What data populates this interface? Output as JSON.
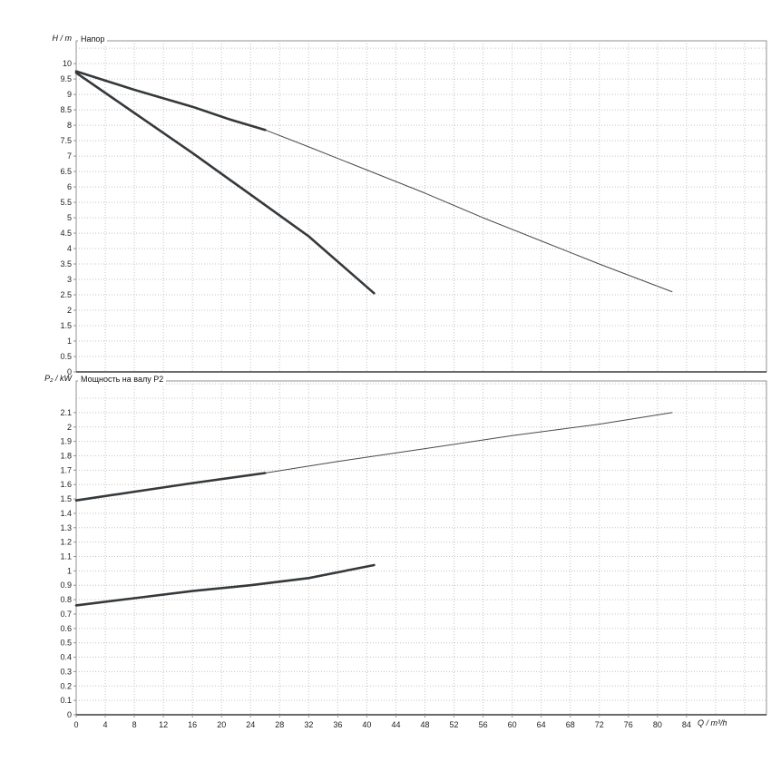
{
  "window": {
    "background": "#ffffff"
  },
  "colors": {
    "grid": "#c4c4c4",
    "frame": "#909090",
    "axis": "#3a3a3a",
    "curve_bold": "#35393c",
    "curve_thin": "#4a4a4a",
    "text": "#111111"
  },
  "xaxis": {
    "label": "Q / m³/h",
    "min": 0,
    "max": 95,
    "tick_step": 4,
    "tick_max": 84
  },
  "chart_data": [
    {
      "type": "line",
      "title": "Напор",
      "ylabel": "H / m",
      "ylim": [
        0,
        10.74
      ],
      "ytick_step": 0.5,
      "ytick_max": 10,
      "grid": "dotted",
      "legend": "none",
      "series": [
        {
          "name": "head-max-speed-curve",
          "weight": "thin",
          "points": [
            [
              0,
              9.75
            ],
            [
              8,
              9.15
            ],
            [
              16,
              8.6
            ],
            [
              21,
              8.2
            ],
            [
              26,
              7.85
            ],
            [
              32,
              7.3
            ],
            [
              40,
              6.55
            ],
            [
              48,
              5.8
            ],
            [
              56,
              5.0
            ],
            [
              64,
              4.25
            ],
            [
              72,
              3.5
            ],
            [
              82,
              2.6
            ]
          ]
        },
        {
          "name": "head-duty-segment",
          "weight": "bold",
          "points": [
            [
              0,
              9.75
            ],
            [
              8,
              9.15
            ],
            [
              16,
              8.6
            ],
            [
              21,
              8.2
            ],
            [
              26,
              7.85
            ]
          ]
        },
        {
          "name": "head-min-speed-curve",
          "weight": "bold",
          "points": [
            [
              0,
              9.7
            ],
            [
              8,
              8.4
            ],
            [
              16,
              7.1
            ],
            [
              24,
              5.75
            ],
            [
              32,
              4.4
            ],
            [
              41,
              2.55
            ]
          ]
        }
      ]
    },
    {
      "type": "line",
      "title": "Мощность на валу P2",
      "ylabel": "P₂ / kW",
      "ylim": [
        0,
        2.32
      ],
      "ytick_step": 0.1,
      "ytick_max": 2.1,
      "grid": "dotted",
      "legend": "none",
      "series": [
        {
          "name": "power-max-speed-curve",
          "weight": "thin",
          "points": [
            [
              0,
              1.49
            ],
            [
              8,
              1.55
            ],
            [
              16,
              1.61
            ],
            [
              26,
              1.68
            ],
            [
              36,
              1.76
            ],
            [
              48,
              1.85
            ],
            [
              60,
              1.94
            ],
            [
              72,
              2.02
            ],
            [
              82,
              2.1
            ]
          ]
        },
        {
          "name": "power-duty-segment",
          "weight": "bold",
          "points": [
            [
              0,
              1.49
            ],
            [
              8,
              1.55
            ],
            [
              16,
              1.61
            ],
            [
              26,
              1.68
            ]
          ]
        },
        {
          "name": "power-min-speed-curve",
          "weight": "bold",
          "points": [
            [
              0,
              0.76
            ],
            [
              8,
              0.81
            ],
            [
              16,
              0.86
            ],
            [
              24,
              0.9
            ],
            [
              32,
              0.95
            ],
            [
              41,
              1.04
            ]
          ]
        }
      ]
    }
  ]
}
